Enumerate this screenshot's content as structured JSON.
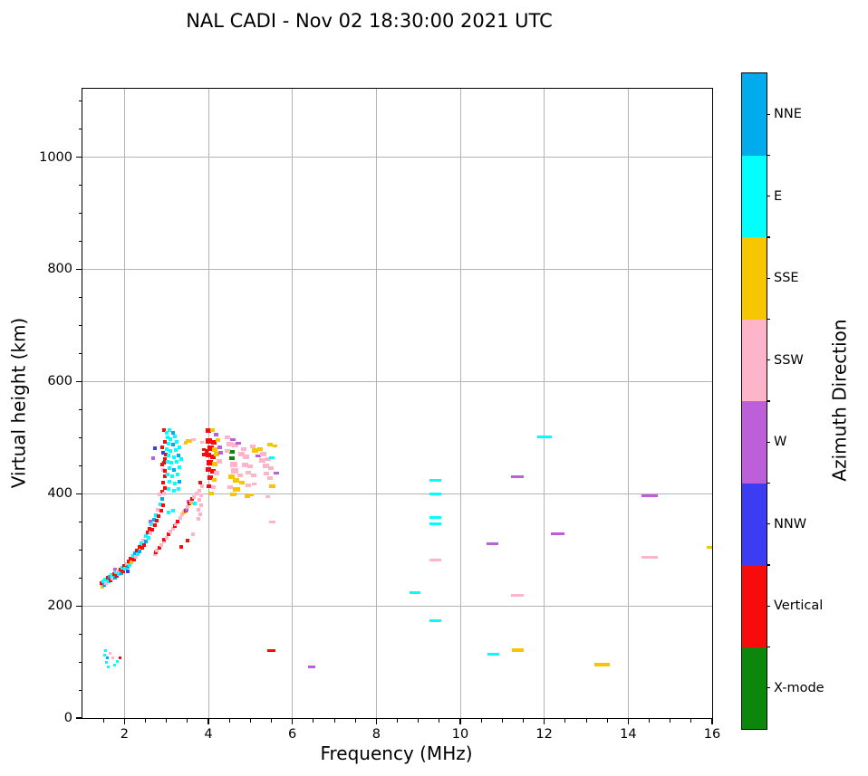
{
  "chart_data": {
    "type": "scatter",
    "title": "NAL CADI - Nov 02 18:30:00 2021 UTC",
    "xlabel": "Frequency (MHz)",
    "ylabel": "Virtual height (km)",
    "xlim": [
      1,
      16
    ],
    "ylim": [
      0,
      1122
    ],
    "x_major_ticks": [
      2,
      4,
      6,
      8,
      10,
      12,
      14,
      16
    ],
    "y_major_ticks": [
      0,
      200,
      400,
      600,
      800,
      1000
    ],
    "x_minor_step": 0.5,
    "y_minor_step": 50,
    "grid": true,
    "grid_color": "#b4b4b4",
    "colorbar": {
      "label": "Azimuth Direction",
      "categories": [
        {
          "label": "NNE",
          "key": "NNE",
          "color": "#00ACEC"
        },
        {
          "label": "E",
          "key": "E",
          "color": "#00FFFF"
        },
        {
          "label": "SSE",
          "key": "SSE",
          "color": "#F6C700"
        },
        {
          "label": "SSW",
          "key": "SSW",
          "color": "#FFB5C9"
        },
        {
          "label": "W",
          "key": "W",
          "color": "#BC5FD8"
        },
        {
          "label": "NNW",
          "key": "NNW",
          "color": "#3C3CF2"
        },
        {
          "label": "Vertical",
          "key": "V",
          "color": "#F70B0B"
        },
        {
          "label": "X-mode",
          "key": "X",
          "color": "#0B870B"
        }
      ]
    },
    "point_default_size": [
      4,
      4
    ],
    "points": [
      [
        1.45,
        240,
        "V"
      ],
      [
        1.47,
        234,
        "SSE"
      ],
      [
        1.5,
        244,
        "E"
      ],
      [
        1.52,
        238,
        "NNE"
      ],
      [
        1.55,
        247,
        "E"
      ],
      [
        1.57,
        241,
        "SSW"
      ],
      [
        1.6,
        250,
        "V"
      ],
      [
        1.62,
        244,
        "E"
      ],
      [
        1.65,
        252,
        "NNE"
      ],
      [
        1.67,
        246,
        "V"
      ],
      [
        1.7,
        255,
        "E"
      ],
      [
        1.72,
        249,
        "SSW"
      ],
      [
        1.75,
        257,
        "V"
      ],
      [
        1.77,
        251,
        "NNE"
      ],
      [
        1.78,
        265,
        "W"
      ],
      [
        1.8,
        260,
        "E"
      ],
      [
        1.82,
        254,
        "V"
      ],
      [
        1.85,
        262,
        "SSW"
      ],
      [
        1.87,
        257,
        "E"
      ],
      [
        1.9,
        265,
        "V"
      ],
      [
        1.92,
        259,
        "NNE"
      ],
      [
        1.95,
        268,
        "E"
      ],
      [
        1.97,
        262,
        "V"
      ],
      [
        2.0,
        272,
        "V"
      ],
      [
        2.02,
        266,
        "E"
      ],
      [
        2.05,
        275,
        "SSW"
      ],
      [
        2.07,
        269,
        "NNE"
      ],
      [
        2.08,
        262,
        "NNW"
      ],
      [
        2.1,
        279,
        "V"
      ],
      [
        2.12,
        273,
        "E"
      ],
      [
        2.15,
        284,
        "V"
      ],
      [
        2.17,
        277,
        "SSE"
      ],
      [
        2.2,
        289,
        "E"
      ],
      [
        2.22,
        282,
        "V"
      ],
      [
        2.25,
        294,
        "NNE"
      ],
      [
        2.27,
        287,
        "SSW"
      ],
      [
        2.3,
        299,
        "V"
      ],
      [
        2.32,
        292,
        "E"
      ],
      [
        2.35,
        305,
        "V"
      ],
      [
        2.37,
        297,
        "NNE"
      ],
      [
        2.4,
        311,
        "E"
      ],
      [
        2.42,
        303,
        "V"
      ],
      [
        2.45,
        317,
        "SSW"
      ],
      [
        2.47,
        309,
        "V"
      ],
      [
        2.5,
        324,
        "E"
      ],
      [
        2.52,
        315,
        "NNE"
      ],
      [
        2.55,
        331,
        "V"
      ],
      [
        2.57,
        322,
        "E"
      ],
      [
        2.6,
        338,
        "V"
      ],
      [
        2.62,
        329,
        "SSW"
      ],
      [
        2.62,
        350,
        "W"
      ],
      [
        2.65,
        346,
        "E"
      ],
      [
        2.67,
        336,
        "V"
      ],
      [
        2.7,
        354,
        "NNE"
      ],
      [
        2.72,
        344,
        "V"
      ],
      [
        2.75,
        362,
        "E"
      ],
      [
        2.77,
        352,
        "V"
      ],
      [
        2.8,
        371,
        "SSW"
      ],
      [
        2.82,
        360,
        "V"
      ],
      [
        2.85,
        381,
        "E"
      ],
      [
        2.87,
        369,
        "V"
      ],
      [
        2.9,
        391,
        "NNE"
      ],
      [
        2.92,
        379,
        "V"
      ],
      [
        2.9,
        403,
        "V"
      ],
      [
        2.96,
        410,
        "V"
      ],
      [
        2.92,
        420,
        "V"
      ],
      [
        2.97,
        431,
        "V"
      ],
      [
        2.93,
        442,
        "SSW"
      ],
      [
        2.9,
        452,
        "V"
      ],
      [
        2.96,
        462,
        "V"
      ],
      [
        2.93,
        473,
        "NNW"
      ],
      [
        2.9,
        483,
        "V"
      ],
      [
        2.96,
        493,
        "V"
      ],
      [
        2.95,
        514,
        "V"
      ],
      [
        2.68,
        464,
        "W"
      ],
      [
        2.72,
        481,
        "NNW"
      ],
      [
        2.98,
        470,
        "V"
      ],
      [
        2.95,
        455,
        "V"
      ],
      [
        2.97,
        440,
        "V"
      ],
      [
        3.0,
        509,
        "E"
      ],
      [
        3.07,
        513,
        "E"
      ],
      [
        3.15,
        508,
        "NNE"
      ],
      [
        3.02,
        500,
        "E"
      ],
      [
        3.1,
        497,
        "E"
      ],
      [
        3.2,
        502,
        "E"
      ],
      [
        3.05,
        489,
        "E"
      ],
      [
        3.15,
        487,
        "NNE"
      ],
      [
        3.25,
        492,
        "E"
      ],
      [
        3.0,
        479,
        "E"
      ],
      [
        3.1,
        476,
        "E"
      ],
      [
        3.22,
        478,
        "E"
      ],
      [
        3.32,
        483,
        "E"
      ],
      [
        3.05,
        468,
        "E"
      ],
      [
        3.17,
        465,
        "E"
      ],
      [
        3.28,
        468,
        "NNE"
      ],
      [
        3.02,
        457,
        "E"
      ],
      [
        3.12,
        455,
        "E"
      ],
      [
        3.24,
        457,
        "E"
      ],
      [
        3.35,
        461,
        "E"
      ],
      [
        3.07,
        446,
        "E"
      ],
      [
        3.18,
        443,
        "NNE"
      ],
      [
        3.3,
        447,
        "E"
      ],
      [
        3.03,
        434,
        "E"
      ],
      [
        3.14,
        431,
        "E"
      ],
      [
        3.26,
        434,
        "E"
      ],
      [
        3.08,
        421,
        "E"
      ],
      [
        3.2,
        418,
        "E"
      ],
      [
        3.32,
        422,
        "NNE"
      ],
      [
        3.05,
        408,
        "E"
      ],
      [
        3.17,
        405,
        "E"
      ],
      [
        3.29,
        408,
        "E"
      ],
      [
        3.45,
        490,
        "SSE"
      ],
      [
        3.5,
        494,
        "SSE"
      ],
      [
        3.52,
        386,
        "W"
      ],
      [
        2.72,
        293,
        "SSW"
      ],
      [
        2.75,
        296,
        "V"
      ],
      [
        2.78,
        299,
        "SSW"
      ],
      [
        2.83,
        304,
        "V"
      ],
      [
        2.88,
        309,
        "SSW"
      ],
      [
        2.94,
        315,
        "SSW"
      ],
      [
        2.95,
        318,
        "V"
      ],
      [
        3.0,
        321,
        "SSW"
      ],
      [
        3.05,
        327,
        "V"
      ],
      [
        3.1,
        332,
        "SSW"
      ],
      [
        3.16,
        338,
        "SSW"
      ],
      [
        3.2,
        342,
        "V"
      ],
      [
        3.22,
        345,
        "SSW"
      ],
      [
        3.27,
        351,
        "V"
      ],
      [
        3.33,
        357,
        "SSW"
      ],
      [
        3.38,
        363,
        "SSW"
      ],
      [
        3.42,
        366,
        "SSE"
      ],
      [
        3.44,
        369,
        "SSW"
      ],
      [
        3.45,
        370,
        "V"
      ],
      [
        3.48,
        372,
        "W"
      ],
      [
        3.5,
        376,
        "SSW"
      ],
      [
        3.55,
        382,
        "V"
      ],
      [
        3.58,
        385,
        "SSE"
      ],
      [
        3.6,
        388,
        "SSW"
      ],
      [
        3.62,
        390,
        "V"
      ],
      [
        3.66,
        394,
        "SSW"
      ],
      [
        3.71,
        400,
        "SSW"
      ],
      [
        3.76,
        355,
        "SSW"
      ],
      [
        3.8,
        363,
        "SSW"
      ],
      [
        3.77,
        372,
        "SSW"
      ],
      [
        3.82,
        380,
        "SSW"
      ],
      [
        3.78,
        389,
        "SSW"
      ],
      [
        3.83,
        397,
        "SSW"
      ],
      [
        3.79,
        406,
        "SSW"
      ],
      [
        3.84,
        414,
        "SSW"
      ],
      [
        3.8,
        420,
        "V"
      ],
      [
        3.35,
        305,
        "V"
      ],
      [
        3.5,
        317,
        "V"
      ],
      [
        3.63,
        328,
        "SSW"
      ],
      [
        3.05,
        367,
        "E"
      ],
      [
        3.15,
        369,
        "E"
      ],
      [
        3.68,
        382,
        "E"
      ],
      [
        2.83,
        398,
        "SSW"
      ],
      [
        2.95,
        401,
        "SSW"
      ],
      [
        4.0,
        512,
        "V",
        6,
        5
      ],
      [
        4.1,
        514,
        "SSE",
        5,
        4
      ],
      [
        4.18,
        506,
        "W",
        5,
        4
      ],
      [
        4.02,
        494,
        "V",
        7,
        6
      ],
      [
        4.12,
        491,
        "V",
        6,
        5
      ],
      [
        4.22,
        496,
        "SSE",
        5,
        4
      ],
      [
        4.05,
        481,
        "V",
        7,
        6
      ],
      [
        4.16,
        478,
        "SSE",
        6,
        5
      ],
      [
        4.26,
        483,
        "W",
        5,
        4
      ],
      [
        4.0,
        469,
        "V",
        6,
        5
      ],
      [
        4.1,
        466,
        "V",
        6,
        5
      ],
      [
        4.2,
        470,
        "SSE",
        6,
        5
      ],
      [
        4.3,
        473,
        "W",
        5,
        4
      ],
      [
        4.04,
        456,
        "V",
        7,
        6
      ],
      [
        4.15,
        453,
        "SSE",
        6,
        5
      ],
      [
        4.25,
        458,
        "SSW",
        6,
        5
      ],
      [
        4.0,
        443,
        "V",
        6,
        5
      ],
      [
        4.1,
        440,
        "V",
        6,
        5
      ],
      [
        4.2,
        436,
        "SSW",
        6,
        5
      ],
      [
        4.05,
        428,
        "V",
        6,
        5
      ],
      [
        4.15,
        425,
        "SSE",
        5,
        4
      ],
      [
        4.02,
        414,
        "V",
        5,
        4
      ],
      [
        4.12,
        411,
        "SSW",
        5,
        4
      ],
      [
        4.07,
        400,
        "SSE",
        5,
        4
      ],
      [
        3.95,
        476,
        "V",
        4,
        4
      ],
      [
        3.9,
        470,
        "V",
        4,
        4
      ],
      [
        3.9,
        478,
        "V",
        4,
        3
      ],
      [
        3.85,
        491,
        "SSW",
        4,
        3
      ],
      [
        3.55,
        494,
        "SSE",
        5,
        4
      ],
      [
        3.65,
        497,
        "SSW",
        5,
        3
      ],
      [
        4.56,
        474,
        "X",
        6,
        4
      ],
      [
        4.56,
        463,
        "X",
        6,
        4
      ],
      [
        4.45,
        500,
        "SSW",
        6,
        4
      ],
      [
        4.58,
        497,
        "W",
        6,
        3
      ],
      [
        4.5,
        489,
        "SSW",
        7,
        5
      ],
      [
        4.64,
        486,
        "SSW",
        7,
        5
      ],
      [
        4.45,
        477,
        "SSW",
        6,
        4
      ],
      [
        4.6,
        452,
        "SSW",
        8,
        6
      ],
      [
        4.62,
        441,
        "SSW",
        8,
        6
      ],
      [
        4.55,
        430,
        "SSE",
        7,
        5
      ],
      [
        4.65,
        424,
        "SSE",
        7,
        5
      ],
      [
        4.52,
        412,
        "SSW",
        6,
        4
      ],
      [
        4.66,
        407,
        "SSE",
        8,
        5
      ],
      [
        4.6,
        398,
        "SSE",
        7,
        4
      ],
      [
        4.78,
        470,
        "SSW",
        7,
        5
      ],
      [
        4.9,
        466,
        "SSW",
        7,
        5
      ],
      [
        4.85,
        480,
        "SSW",
        6,
        4
      ],
      [
        5.05,
        484,
        "SSW",
        6,
        4
      ],
      [
        5.12,
        477,
        "SSE",
        7,
        5
      ],
      [
        5.22,
        480,
        "SSE",
        6,
        4
      ],
      [
        5.18,
        468,
        "W",
        6,
        3
      ],
      [
        5.3,
        470,
        "SSW",
        7,
        5
      ],
      [
        5.28,
        459,
        "SSW",
        7,
        5
      ],
      [
        5.42,
        462,
        "SSW",
        6,
        4
      ],
      [
        5.36,
        450,
        "SSW",
        7,
        5
      ],
      [
        5.48,
        446,
        "SSW",
        6,
        4
      ],
      [
        5.5,
        464,
        "E",
        6,
        3
      ],
      [
        5.47,
        487,
        "SSE",
        6,
        4
      ],
      [
        5.58,
        485,
        "SSE",
        5,
        3
      ],
      [
        5.38,
        436,
        "SSW",
        6,
        4
      ],
      [
        5.46,
        428,
        "SSW",
        6,
        4
      ],
      [
        5.52,
        414,
        "SSE",
        7,
        4
      ],
      [
        5.62,
        437,
        "W",
        6,
        3
      ],
      [
        5.42,
        394,
        "SSW",
        5,
        3
      ],
      [
        4.92,
        395,
        "SSE",
        6,
        4
      ],
      [
        5.02,
        398,
        "SSE",
        5,
        3
      ],
      [
        4.72,
        490,
        "W",
        6,
        3
      ],
      [
        4.88,
        452,
        "SSW",
        7,
        5
      ],
      [
        5.0,
        448,
        "SSW",
        6,
        4
      ],
      [
        4.95,
        438,
        "SSW",
        6,
        4
      ],
      [
        5.08,
        432,
        "SSW",
        6,
        4
      ],
      [
        4.8,
        420,
        "SSE",
        6,
        4
      ],
      [
        4.95,
        415,
        "SSW",
        6,
        4
      ],
      [
        5.1,
        418,
        "SSW",
        5,
        3
      ],
      [
        4.75,
        433,
        "SSW",
        6,
        4
      ],
      [
        1.52,
        113,
        "E",
        3,
        3
      ],
      [
        1.56,
        120,
        "E",
        3,
        3
      ],
      [
        1.58,
        100,
        "E",
        3,
        3
      ],
      [
        1.62,
        92,
        "E",
        3,
        3
      ],
      [
        1.66,
        116,
        "SSW",
        3,
        3
      ],
      [
        1.73,
        108,
        "SSW",
        3,
        3
      ],
      [
        1.76,
        95,
        "E",
        3,
        3
      ],
      [
        1.83,
        101,
        "E",
        3,
        3
      ],
      [
        1.9,
        107,
        "V",
        3,
        3
      ],
      [
        1.6,
        108,
        "NNE",
        3,
        3
      ],
      [
        5.51,
        121,
        "V",
        9,
        3
      ],
      [
        5.53,
        350,
        "SSW",
        7,
        3
      ],
      [
        6.46,
        92,
        "W",
        8,
        3
      ],
      [
        8.92,
        224,
        "E",
        12,
        3
      ],
      [
        9.4,
        424,
        "E",
        13,
        3
      ],
      [
        9.4,
        400,
        "E",
        13,
        3
      ],
      [
        9.4,
        358,
        "E",
        13,
        3
      ],
      [
        9.4,
        347,
        "E",
        13,
        3
      ],
      [
        9.4,
        281,
        "SSW",
        13,
        3
      ],
      [
        9.4,
        173,
        "E",
        13,
        3
      ],
      [
        10.77,
        310,
        "W",
        13,
        3
      ],
      [
        10.78,
        114,
        "E",
        13,
        3
      ],
      [
        11.37,
        218,
        "SSW",
        14,
        3
      ],
      [
        11.36,
        121,
        "SSE",
        13,
        4
      ],
      [
        11.37,
        431,
        "W",
        14,
        3
      ],
      [
        12.0,
        502,
        "E",
        16,
        3
      ],
      [
        12.33,
        329,
        "W",
        15,
        3
      ],
      [
        13.37,
        95,
        "SSE",
        17,
        4
      ],
      [
        14.51,
        397,
        "W",
        18,
        3
      ],
      [
        14.51,
        287,
        "SSW",
        18,
        3
      ],
      [
        15.96,
        305,
        "SSE",
        8,
        3
      ]
    ]
  }
}
